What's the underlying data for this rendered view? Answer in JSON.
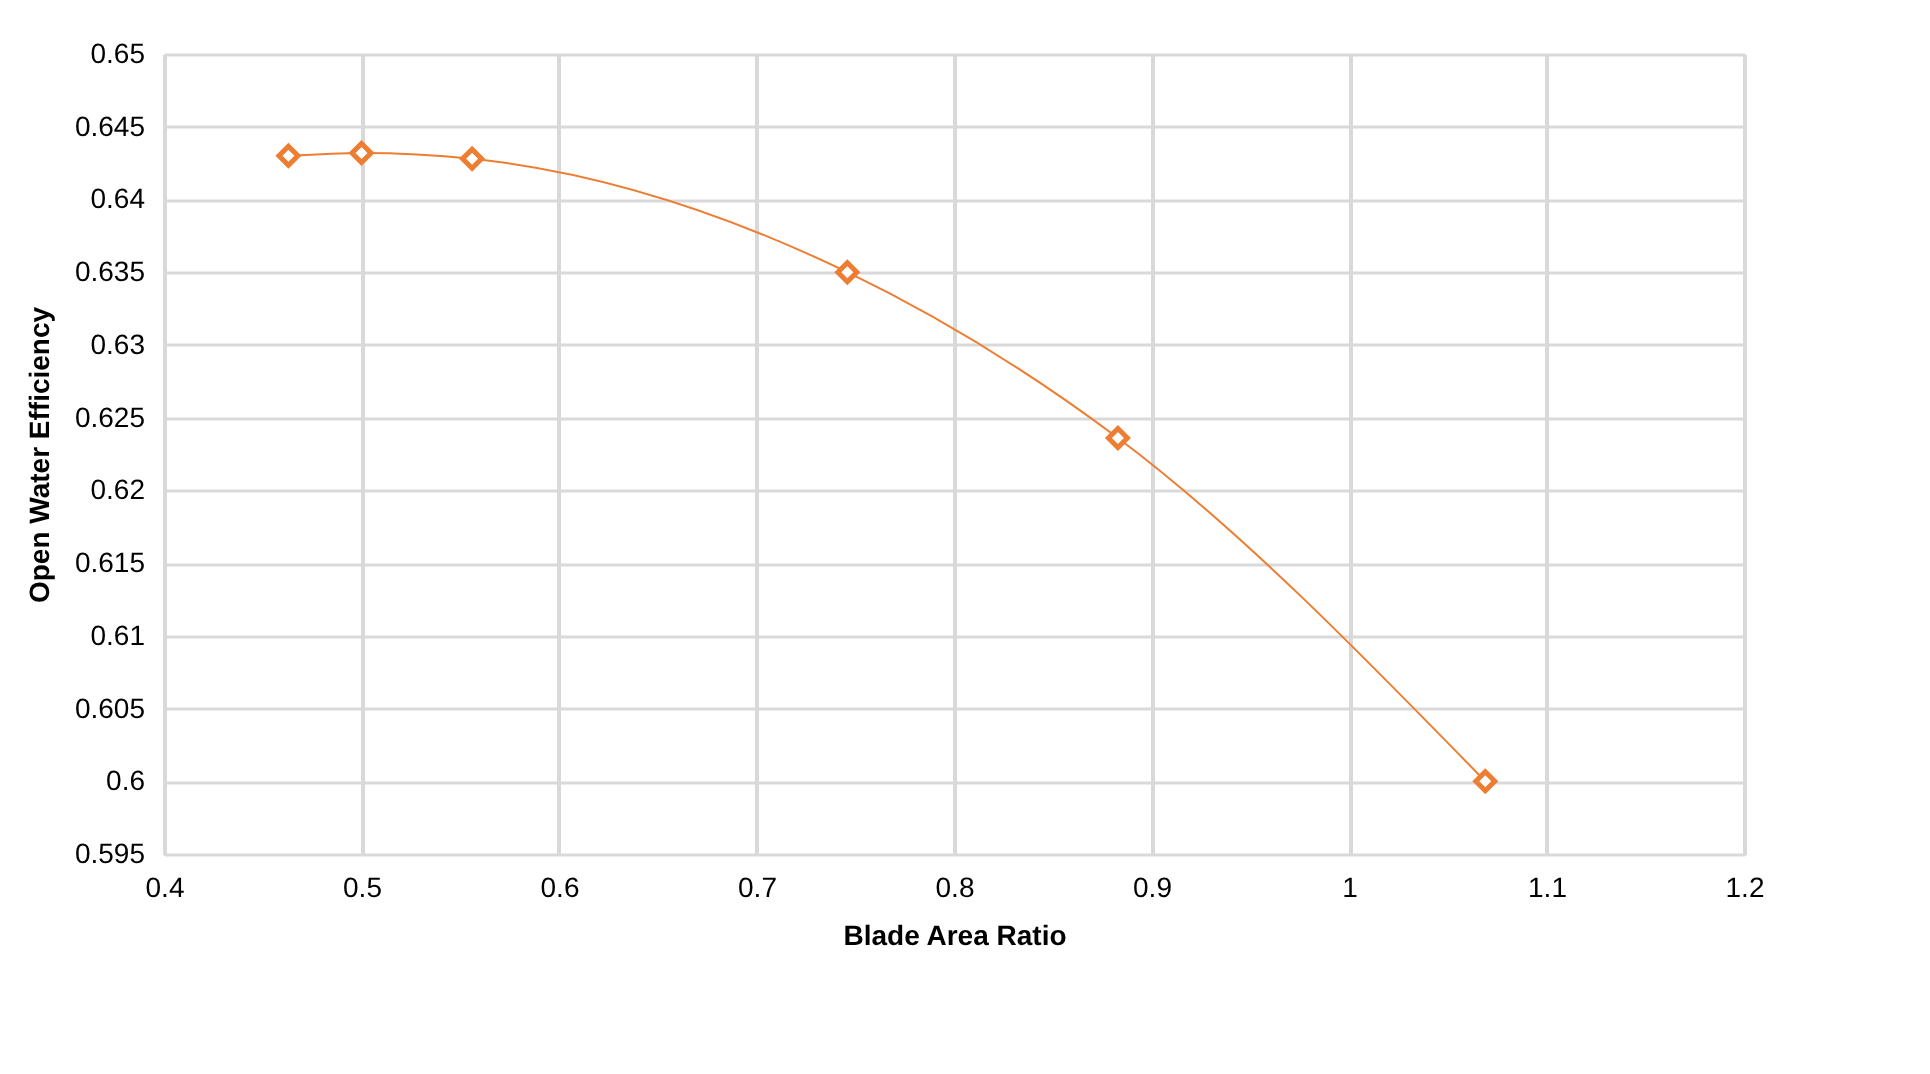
{
  "chart_data": {
    "type": "line",
    "xlabel": "Blade Area Ratio",
    "ylabel": "Open Water Efficiency",
    "x": [
      0.463,
      0.5,
      0.556,
      0.746,
      0.883,
      1.069
    ],
    "series": [
      {
        "color": "#ed7d31",
        "values": [
          0.643,
          0.6432,
          0.6428,
          0.635,
          0.6236,
          0.6
        ]
      }
    ],
    "xlim": [
      0.4,
      1.2
    ],
    "xticks": [
      0.4,
      0.5,
      0.6,
      0.7,
      0.8,
      0.9,
      1,
      1.1,
      1.2
    ],
    "ylim": [
      0.595,
      0.65
    ],
    "yticks": [
      0.595,
      0.6,
      0.605,
      0.61,
      0.615,
      0.62,
      0.625,
      0.63,
      0.635,
      0.64,
      0.645,
      0.65
    ],
    "grid": true,
    "marker": "diamond",
    "line_style": "solid"
  }
}
